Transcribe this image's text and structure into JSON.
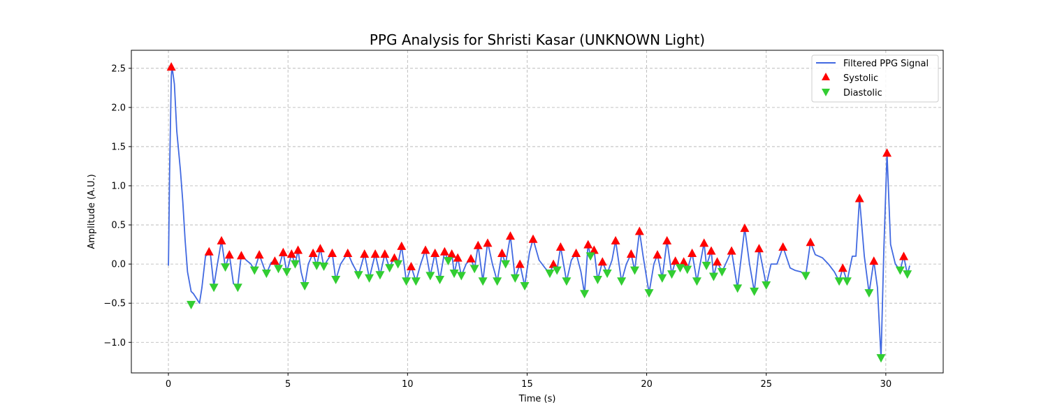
{
  "chart_data": {
    "type": "line",
    "title": "PPG Analysis for Shristi Kasar (UNKNOWN Light)",
    "xlabel": "Time (s)",
    "ylabel": "Amplitude (A.U.)",
    "xlim": [
      -1.55,
      32.4
    ],
    "ylim": [
      -1.39,
      2.73
    ],
    "x_ticks": [
      0,
      5,
      10,
      15,
      20,
      25,
      30
    ],
    "x_tick_labels": [
      "0",
      "5",
      "10",
      "15",
      "20",
      "25",
      "30"
    ],
    "y_ticks": [
      -1.0,
      -0.5,
      0.0,
      0.5,
      1.0,
      1.5,
      2.0,
      2.5
    ],
    "y_tick_labels": [
      "−1.0",
      "−0.5",
      "0.0",
      "0.5",
      "1.0",
      "1.5",
      "2.0",
      "2.5"
    ],
    "grid": true,
    "legend_position": "top-right",
    "colors": {
      "signal": "#4169e1",
      "systolic": "#ff0000",
      "diastolic": "#32cd32"
    },
    "series": [
      {
        "name": "Filtered PPG Signal",
        "kind": "line",
        "points": [
          [
            0.0,
            -0.02
          ],
          [
            0.05,
            1.2
          ],
          [
            0.12,
            2.4
          ],
          [
            0.15,
            2.52
          ],
          [
            0.25,
            2.3
          ],
          [
            0.35,
            1.7
          ],
          [
            0.5,
            1.2
          ],
          [
            0.6,
            0.8
          ],
          [
            0.7,
            0.3
          ],
          [
            0.8,
            -0.1
          ],
          [
            0.95,
            -0.35
          ],
          [
            1.05,
            -0.38
          ],
          [
            1.2,
            -0.45
          ],
          [
            1.3,
            -0.5
          ],
          [
            1.4,
            -0.3
          ],
          [
            1.55,
            0.1
          ],
          [
            1.75,
            0.15
          ],
          [
            1.9,
            -0.28
          ],
          [
            2.05,
            0.0
          ],
          [
            2.22,
            0.3
          ],
          [
            2.38,
            -0.04
          ],
          [
            2.55,
            0.12
          ],
          [
            2.72,
            -0.25
          ],
          [
            2.9,
            -0.28
          ],
          [
            3.05,
            0.12
          ],
          [
            3.25,
            0.05
          ],
          [
            3.45,
            0.0
          ],
          [
            3.6,
            -0.08
          ],
          [
            3.8,
            0.12
          ],
          [
            4.0,
            -0.05
          ],
          [
            4.1,
            -0.12
          ],
          [
            4.3,
            0.02
          ],
          [
            4.45,
            0.04
          ],
          [
            4.6,
            -0.06
          ],
          [
            4.8,
            0.15
          ],
          [
            4.95,
            -0.1
          ],
          [
            5.15,
            0.13
          ],
          [
            5.3,
            0.0
          ],
          [
            5.42,
            0.18
          ],
          [
            5.55,
            -0.1
          ],
          [
            5.7,
            -0.28
          ],
          [
            5.85,
            0.0
          ],
          [
            6.05,
            0.14
          ],
          [
            6.2,
            -0.02
          ],
          [
            6.35,
            0.2
          ],
          [
            6.5,
            -0.03
          ],
          [
            6.65,
            0.05
          ],
          [
            6.85,
            0.14
          ],
          [
            7.0,
            -0.2
          ],
          [
            7.2,
            0.0
          ],
          [
            7.5,
            0.14
          ],
          [
            7.7,
            0.0
          ],
          [
            7.95,
            -0.14
          ],
          [
            8.2,
            0.13
          ],
          [
            8.4,
            -0.18
          ],
          [
            8.65,
            0.13
          ],
          [
            8.85,
            -0.14
          ],
          [
            9.05,
            0.13
          ],
          [
            9.25,
            -0.05
          ],
          [
            9.45,
            0.1
          ],
          [
            9.6,
            0.0
          ],
          [
            9.75,
            0.23
          ],
          [
            9.95,
            -0.22
          ],
          [
            10.15,
            -0.03
          ],
          [
            10.35,
            -0.22
          ],
          [
            10.55,
            0.0
          ],
          [
            10.75,
            0.18
          ],
          [
            10.95,
            -0.15
          ],
          [
            11.15,
            0.14
          ],
          [
            11.35,
            -0.2
          ],
          [
            11.55,
            0.16
          ],
          [
            11.7,
            0.04
          ],
          [
            11.85,
            0.14
          ],
          [
            11.95,
            -0.12
          ],
          [
            12.1,
            0.08
          ],
          [
            12.25,
            -0.15
          ],
          [
            12.45,
            0.0
          ],
          [
            12.65,
            0.07
          ],
          [
            12.8,
            -0.06
          ],
          [
            12.95,
            0.24
          ],
          [
            13.15,
            -0.22
          ],
          [
            13.35,
            0.28
          ],
          [
            13.55,
            0.0
          ],
          [
            13.75,
            -0.22
          ],
          [
            13.95,
            0.14
          ],
          [
            14.1,
            0.0
          ],
          [
            14.3,
            0.36
          ],
          [
            14.5,
            -0.18
          ],
          [
            14.7,
            0.0
          ],
          [
            14.9,
            -0.28
          ],
          [
            15.1,
            0.15
          ],
          [
            15.25,
            0.32
          ],
          [
            15.5,
            0.05
          ],
          [
            15.75,
            -0.05
          ],
          [
            15.95,
            -0.12
          ],
          [
            16.1,
            0.0
          ],
          [
            16.25,
            -0.08
          ],
          [
            16.4,
            0.22
          ],
          [
            16.65,
            -0.22
          ],
          [
            16.85,
            0.05
          ],
          [
            17.05,
            0.14
          ],
          [
            17.25,
            -0.1
          ],
          [
            17.4,
            -0.38
          ],
          [
            17.55,
            0.25
          ],
          [
            17.65,
            0.1
          ],
          [
            17.8,
            0.18
          ],
          [
            17.95,
            -0.2
          ],
          [
            18.15,
            0.03
          ],
          [
            18.35,
            -0.12
          ],
          [
            18.55,
            0.05
          ],
          [
            18.7,
            0.3
          ],
          [
            18.95,
            -0.22
          ],
          [
            19.15,
            0.0
          ],
          [
            19.35,
            0.13
          ],
          [
            19.5,
            -0.08
          ],
          [
            19.7,
            0.42
          ],
          [
            19.85,
            0.1
          ],
          [
            20.1,
            -0.37
          ],
          [
            20.3,
            0.0
          ],
          [
            20.45,
            0.12
          ],
          [
            20.65,
            -0.18
          ],
          [
            20.85,
            0.3
          ],
          [
            21.05,
            -0.13
          ],
          [
            21.2,
            0.04
          ],
          [
            21.4,
            -0.05
          ],
          [
            21.55,
            0.03
          ],
          [
            21.7,
            -0.07
          ],
          [
            21.9,
            0.14
          ],
          [
            22.1,
            -0.22
          ],
          [
            22.4,
            0.27
          ],
          [
            22.5,
            -0.02
          ],
          [
            22.7,
            0.17
          ],
          [
            22.8,
            -0.16
          ],
          [
            22.95,
            0.03
          ],
          [
            23.15,
            -0.1
          ],
          [
            23.3,
            0.0
          ],
          [
            23.55,
            0.17
          ],
          [
            23.8,
            -0.31
          ],
          [
            24.0,
            0.2
          ],
          [
            24.1,
            0.46
          ],
          [
            24.3,
            0.0
          ],
          [
            24.5,
            -0.35
          ],
          [
            24.7,
            0.2
          ],
          [
            25.0,
            -0.27
          ],
          [
            25.2,
            0.0
          ],
          [
            25.45,
            0.0
          ],
          [
            25.7,
            0.22
          ],
          [
            26.0,
            -0.05
          ],
          [
            26.2,
            -0.08
          ],
          [
            26.45,
            -0.1
          ],
          [
            26.65,
            -0.15
          ],
          [
            26.85,
            0.28
          ],
          [
            27.05,
            0.12
          ],
          [
            27.35,
            0.08
          ],
          [
            27.6,
            0.0
          ],
          [
            27.85,
            -0.1
          ],
          [
            28.05,
            -0.22
          ],
          [
            28.2,
            -0.05
          ],
          [
            28.38,
            -0.22
          ],
          [
            28.6,
            0.1
          ],
          [
            28.75,
            0.1
          ],
          [
            28.9,
            0.84
          ],
          [
            29.1,
            0.1
          ],
          [
            29.3,
            -0.37
          ],
          [
            29.5,
            0.04
          ],
          [
            29.65,
            -0.3
          ],
          [
            29.8,
            -1.2
          ],
          [
            29.92,
            0.2
          ],
          [
            30.05,
            1.42
          ],
          [
            30.2,
            0.25
          ],
          [
            30.4,
            0.0
          ],
          [
            30.6,
            -0.08
          ],
          [
            30.75,
            0.1
          ],
          [
            30.9,
            -0.13
          ],
          [
            31.0,
            -0.02
          ]
        ]
      },
      {
        "name": "Systolic",
        "kind": "markers",
        "marker": "triangle-up",
        "points": [
          [
            0.12,
            2.52
          ],
          [
            1.7,
            0.16
          ],
          [
            2.22,
            0.3
          ],
          [
            2.55,
            0.12
          ],
          [
            3.05,
            0.11
          ],
          [
            3.8,
            0.12
          ],
          [
            4.45,
            0.04
          ],
          [
            4.8,
            0.15
          ],
          [
            5.15,
            0.13
          ],
          [
            5.42,
            0.18
          ],
          [
            6.05,
            0.14
          ],
          [
            6.35,
            0.2
          ],
          [
            6.85,
            0.14
          ],
          [
            7.5,
            0.14
          ],
          [
            8.2,
            0.13
          ],
          [
            8.65,
            0.13
          ],
          [
            9.05,
            0.13
          ],
          [
            9.45,
            0.08
          ],
          [
            9.75,
            0.23
          ],
          [
            10.15,
            -0.03
          ],
          [
            10.75,
            0.18
          ],
          [
            11.15,
            0.14
          ],
          [
            11.55,
            0.16
          ],
          [
            11.85,
            0.13
          ],
          [
            12.1,
            0.08
          ],
          [
            12.65,
            0.07
          ],
          [
            12.95,
            0.24
          ],
          [
            13.35,
            0.27
          ],
          [
            13.95,
            0.14
          ],
          [
            14.3,
            0.36
          ],
          [
            14.7,
            0.0
          ],
          [
            15.25,
            0.32
          ],
          [
            16.1,
            0.0
          ],
          [
            16.4,
            0.22
          ],
          [
            17.05,
            0.14
          ],
          [
            17.55,
            0.25
          ],
          [
            17.8,
            0.18
          ],
          [
            18.15,
            0.03
          ],
          [
            18.7,
            0.3
          ],
          [
            19.35,
            0.13
          ],
          [
            19.7,
            0.42
          ],
          [
            20.45,
            0.12
          ],
          [
            20.85,
            0.3
          ],
          [
            21.2,
            0.04
          ],
          [
            21.55,
            0.03
          ],
          [
            21.9,
            0.14
          ],
          [
            22.4,
            0.27
          ],
          [
            22.7,
            0.17
          ],
          [
            22.95,
            0.03
          ],
          [
            23.55,
            0.17
          ],
          [
            24.1,
            0.46
          ],
          [
            24.7,
            0.2
          ],
          [
            25.7,
            0.22
          ],
          [
            26.85,
            0.28
          ],
          [
            28.2,
            -0.05
          ],
          [
            28.9,
            0.84
          ],
          [
            29.5,
            0.04
          ],
          [
            30.05,
            1.42
          ],
          [
            30.75,
            0.1
          ]
        ]
      },
      {
        "name": "Diastolic",
        "kind": "markers",
        "marker": "triangle-down",
        "points": [
          [
            0.95,
            -0.52
          ],
          [
            1.9,
            -0.3
          ],
          [
            2.38,
            -0.04
          ],
          [
            2.9,
            -0.3
          ],
          [
            3.6,
            -0.08
          ],
          [
            4.1,
            -0.12
          ],
          [
            4.6,
            -0.06
          ],
          [
            4.95,
            -0.1
          ],
          [
            5.3,
            -0.0
          ],
          [
            5.7,
            -0.28
          ],
          [
            6.2,
            -0.02
          ],
          [
            6.5,
            -0.03
          ],
          [
            7.0,
            -0.2
          ],
          [
            7.95,
            -0.14
          ],
          [
            8.4,
            -0.18
          ],
          [
            8.85,
            -0.14
          ],
          [
            9.25,
            -0.05
          ],
          [
            9.6,
            -0.0
          ],
          [
            9.95,
            -0.22
          ],
          [
            10.35,
            -0.22
          ],
          [
            10.95,
            -0.15
          ],
          [
            11.35,
            -0.2
          ],
          [
            11.7,
            0.04
          ],
          [
            11.95,
            -0.12
          ],
          [
            12.25,
            -0.15
          ],
          [
            12.8,
            -0.06
          ],
          [
            13.15,
            -0.22
          ],
          [
            13.75,
            -0.22
          ],
          [
            14.1,
            0.0
          ],
          [
            14.5,
            -0.18
          ],
          [
            14.9,
            -0.28
          ],
          [
            15.95,
            -0.12
          ],
          [
            16.25,
            -0.08
          ],
          [
            16.65,
            -0.22
          ],
          [
            17.4,
            -0.38
          ],
          [
            17.65,
            0.1
          ],
          [
            17.95,
            -0.2
          ],
          [
            18.35,
            -0.12
          ],
          [
            18.95,
            -0.22
          ],
          [
            19.5,
            -0.08
          ],
          [
            20.1,
            -0.37
          ],
          [
            20.65,
            -0.18
          ],
          [
            21.05,
            -0.13
          ],
          [
            21.4,
            -0.05
          ],
          [
            21.7,
            -0.07
          ],
          [
            22.1,
            -0.22
          ],
          [
            22.5,
            -0.02
          ],
          [
            22.8,
            -0.16
          ],
          [
            23.15,
            -0.1
          ],
          [
            23.8,
            -0.31
          ],
          [
            24.5,
            -0.35
          ],
          [
            25.0,
            -0.27
          ],
          [
            26.65,
            -0.15
          ],
          [
            28.05,
            -0.22
          ],
          [
            28.38,
            -0.22
          ],
          [
            29.3,
            -0.37
          ],
          [
            29.8,
            -1.2
          ],
          [
            30.6,
            -0.08
          ],
          [
            30.9,
            -0.13
          ]
        ]
      }
    ]
  }
}
